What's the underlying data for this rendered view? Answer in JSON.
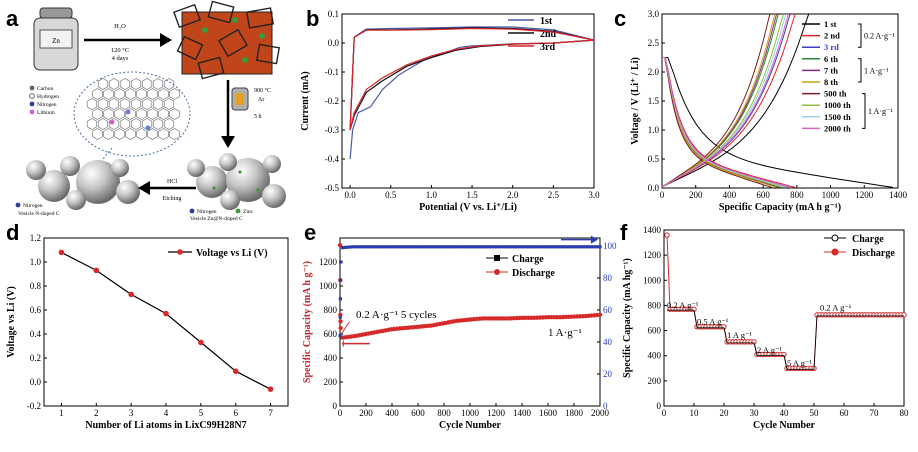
{
  "panels": {
    "a": {
      "label": "a",
      "step1": {
        "l1": "H₂O",
        "l2": "120 °C",
        "l3": "4 days"
      },
      "step2": {
        "l1": "900 °C",
        "l2": "Ar",
        "l3": "5 h"
      },
      "step3": {
        "l1": "HCl",
        "l2": "Etching"
      },
      "legend": [
        "Carbon",
        "Hydrogen",
        "Nitrogen",
        "Lithium"
      ],
      "left_caption": {
        "dot_label": "Nitrogen",
        "text": "Vesicle N-doped C"
      },
      "right_caption": {
        "dot1": "Nitrogen",
        "dot2": "Zinc",
        "text": "Vesicle Zn@N-doped C"
      }
    },
    "b": {
      "label": "b"
    },
    "c": {
      "label": "c"
    },
    "d": {
      "label": "d"
    },
    "e": {
      "label": "e"
    },
    "f": {
      "label": "f"
    }
  },
  "chart_data": [
    {
      "id": "b",
      "type": "line",
      "xlabel": "Potential (V vs. Li⁺/Li)",
      "ylabel": "Current (mA)",
      "xlim": [
        -0.1,
        3.0
      ],
      "ylim": [
        -0.5,
        0.1
      ],
      "xticks": [
        "0.0",
        "0.5",
        "1.0",
        "1.5",
        "2.0",
        "2.5",
        "3.0"
      ],
      "yticks": [
        "0.1",
        "0.0",
        "-0.1",
        "-0.2",
        "-0.3",
        "-0.4",
        "-0.5"
      ],
      "legend_position": "top-right",
      "series": [
        {
          "name": "1st",
          "color": "#4b5aa8",
          "points": [
            [
              0.0,
              -0.4
            ],
            [
              0.03,
              -0.3
            ],
            [
              0.1,
              -0.24
            ],
            [
              0.25,
              -0.22
            ],
            [
              0.4,
              -0.16
            ],
            [
              0.6,
              -0.11
            ],
            [
              0.9,
              -0.06
            ],
            [
              1.2,
              -0.03
            ],
            [
              1.35,
              -0.015
            ],
            [
              1.5,
              -0.01
            ],
            [
              2.0,
              -0.003
            ],
            [
              2.5,
              0.0
            ],
            [
              3.0,
              0.01
            ],
            [
              2.5,
              0.045
            ],
            [
              2.0,
              0.055
            ],
            [
              1.5,
              0.055
            ],
            [
              1.0,
              0.052
            ],
            [
              0.5,
              0.05
            ],
            [
              0.2,
              0.048
            ],
            [
              0.05,
              0.02
            ],
            [
              0.0,
              -0.3
            ]
          ]
        },
        {
          "name": "2nd",
          "color": "#111111",
          "points": [
            [
              0.0,
              -0.3
            ],
            [
              0.05,
              -0.25
            ],
            [
              0.2,
              -0.17
            ],
            [
              0.4,
              -0.13
            ],
            [
              0.7,
              -0.08
            ],
            [
              1.0,
              -0.05
            ],
            [
              1.3,
              -0.025
            ],
            [
              1.6,
              -0.012
            ],
            [
              2.0,
              -0.004
            ],
            [
              2.5,
              0.0
            ],
            [
              3.0,
              0.01
            ],
            [
              2.5,
              0.04
            ],
            [
              2.0,
              0.05
            ],
            [
              1.5,
              0.052
            ],
            [
              1.0,
              0.048
            ],
            [
              0.5,
              0.045
            ],
            [
              0.2,
              0.045
            ],
            [
              0.05,
              0.02
            ],
            [
              0.0,
              -0.3
            ]
          ]
        },
        {
          "name": "3rd",
          "color": "#d9262c",
          "points": [
            [
              0.0,
              -0.3
            ],
            [
              0.05,
              -0.24
            ],
            [
              0.2,
              -0.16
            ],
            [
              0.4,
              -0.12
            ],
            [
              0.7,
              -0.075
            ],
            [
              1.0,
              -0.045
            ],
            [
              1.3,
              -0.022
            ],
            [
              1.6,
              -0.01
            ],
            [
              2.0,
              -0.003
            ],
            [
              2.5,
              0.0
            ],
            [
              3.0,
              0.01
            ],
            [
              2.5,
              0.038
            ],
            [
              2.0,
              0.048
            ],
            [
              1.5,
              0.05
            ],
            [
              1.0,
              0.046
            ],
            [
              0.5,
              0.044
            ],
            [
              0.2,
              0.044
            ],
            [
              0.05,
              0.02
            ],
            [
              0.0,
              -0.3
            ]
          ]
        }
      ]
    },
    {
      "id": "c",
      "type": "line",
      "xlabel": "Specific Capacity (mA h g⁻¹)",
      "ylabel": "Voltage / V (Li⁺ / Li)",
      "xlim": [
        0,
        1400
      ],
      "ylim": [
        0.0,
        3.0
      ],
      "xticks": [
        "0",
        "200",
        "400",
        "600",
        "800",
        "1000",
        "1200",
        "1400"
      ],
      "yticks": [
        "3.0",
        "2.5",
        "2.0",
        "1.5",
        "1.0",
        "0.5",
        "0.0"
      ],
      "legend_position": "right",
      "legend_groups": [
        {
          "rate": "0.2 A·g⁻¹",
          "from": 1,
          "to": 3
        },
        {
          "rate": "1 A·g⁻¹",
          "from": 4,
          "to": 6
        },
        {
          "rate": "1 A·g⁻¹",
          "from": 7,
          "to": 10
        }
      ],
      "series": [
        {
          "name": "1 st",
          "color": "#000000",
          "discharge_end": 1370,
          "charge_end": 870
        },
        {
          "name": "2 nd",
          "color": "#e0202a",
          "discharge_end": 790,
          "charge_end": 790
        },
        {
          "name": "3 rd",
          "color": "#3a3ec2",
          "discharge_end": 760,
          "charge_end": 760
        },
        {
          "name": "6 th",
          "color": "#2a8a2a",
          "discharge_end": 700,
          "charge_end": 690
        },
        {
          "name": "7 th",
          "color": "#8a2a8a",
          "discharge_end": 690,
          "charge_end": 680
        },
        {
          "name": "8 th",
          "color": "#c8a010",
          "discharge_end": 680,
          "charge_end": 670
        },
        {
          "name": "500 th",
          "color": "#7a1f1f",
          "discharge_end": 650,
          "charge_end": 640
        },
        {
          "name": "1000 th",
          "color": "#8fbf3f",
          "discharge_end": 720,
          "charge_end": 720
        },
        {
          "name": "1500 th",
          "color": "#9ad0e8",
          "discharge_end": 740,
          "charge_end": 735
        },
        {
          "name": "2000 th",
          "color": "#e060c0",
          "discharge_end": 760,
          "charge_end": 750
        }
      ]
    },
    {
      "id": "d",
      "type": "line",
      "xlabel": "Number of Li atoms in LixC99H28N7",
      "ylabel": "Voltage vs Li (V)",
      "xlim": [
        0.5,
        7.5
      ],
      "ylim": [
        -0.2,
        1.2
      ],
      "xticks": [
        "1",
        "2",
        "3",
        "4",
        "5",
        "6",
        "7"
      ],
      "yticks": [
        "1.2",
        "1.0",
        "0.8",
        "0.6",
        "0.4",
        "0.2",
        "0.0",
        "-0.2"
      ],
      "legend_position": "top-right",
      "series": [
        {
          "name": "Voltage vs Li (V)",
          "color": "#000000",
          "marker": "#d62a2a",
          "x": [
            1,
            2,
            3,
            4,
            5,
            6,
            7
          ],
          "y": [
            1.08,
            0.93,
            0.73,
            0.57,
            0.33,
            0.09,
            -0.06
          ]
        }
      ]
    },
    {
      "id": "e",
      "type": "scatter",
      "xlabel": "Cycle Number",
      "ylabel": "Specific Capacity (mA h g⁻¹)",
      "y2label": "Coulombic Efficiency (%)",
      "xlim": [
        0,
        2000
      ],
      "ylim": [
        0,
        1400
      ],
      "y2lim": [
        0,
        105
      ],
      "xticks": [
        "0",
        "200",
        "400",
        "600",
        "800",
        "1000",
        "1200",
        "1400",
        "1600",
        "1800",
        "2000"
      ],
      "yticks": [
        "0",
        "200",
        "400",
        "600",
        "800",
        "1000",
        "1200"
      ],
      "y2ticks": [
        "0",
        "20",
        "40",
        "60",
        "80",
        "100"
      ],
      "legend_position": "center",
      "annotations": [
        "0.2 A·g⁻¹ 5 cycles",
        "1 A·g⁻¹"
      ],
      "series": [
        {
          "name": "Charge",
          "color": "#000000",
          "axis": "left",
          "x": [
            1,
            3,
            5,
            20,
            100,
            200,
            300,
            400,
            500,
            600,
            700,
            800,
            900,
            1000,
            1100,
            1200,
            1300,
            1400,
            1500,
            1600,
            1700,
            1800,
            1900,
            2000
          ],
          "y": [
            600,
            590,
            580,
            570,
            580,
            600,
            620,
            640,
            650,
            660,
            670,
            690,
            710,
            720,
            730,
            730,
            730,
            735,
            735,
            740,
            740,
            745,
            750,
            760
          ]
        },
        {
          "name": "Discharge",
          "color": "#d62a2a",
          "axis": "left",
          "x": [
            1,
            3,
            5,
            20,
            100,
            200,
            300,
            400,
            500,
            600,
            700,
            800,
            900,
            1000,
            1100,
            1200,
            1300,
            1400,
            1500,
            1600,
            1700,
            1800,
            1900,
            2000
          ],
          "y": [
            1340,
            760,
            650,
            570,
            580,
            600,
            620,
            640,
            650,
            660,
            670,
            690,
            710,
            720,
            730,
            730,
            730,
            735,
            735,
            740,
            740,
            745,
            750,
            760
          ]
        },
        {
          "name": "Coulombic Efficiency",
          "color": "#2a3cb0",
          "axis": "right",
          "x": [
            1,
            5,
            20,
            100,
            500,
            1000,
            1500,
            2000
          ],
          "y": [
            44,
            90,
            99,
            99.5,
            99.5,
            99.5,
            99.5,
            99.5
          ]
        }
      ]
    },
    {
      "id": "f",
      "type": "line",
      "xlabel": "Cycle Number",
      "ylabel": "Specific Capacity (mA hg⁻¹)",
      "xlim": [
        0,
        80
      ],
      "ylim": [
        0,
        1400
      ],
      "xticks": [
        "0",
        "10",
        "20",
        "30",
        "40",
        "50",
        "60",
        "70",
        "80"
      ],
      "yticks": [
        "0",
        "200",
        "400",
        "600",
        "800",
        "1000",
        "1200",
        "1400"
      ],
      "legend_position": "top-right",
      "rate_labels": [
        {
          "text": "0.2 A g⁻¹",
          "x": 1,
          "y": 780
        },
        {
          "text": "0.5 A g⁻¹",
          "x": 11,
          "y": 650
        },
        {
          "text": "1 A g⁻¹",
          "x": 21,
          "y": 540
        },
        {
          "text": "2 A g⁻¹",
          "x": 31,
          "y": 420
        },
        {
          "text": "5 A g⁻¹",
          "x": 41,
          "y": 320
        },
        {
          "text": "0.2 A g⁻¹",
          "x": 52,
          "y": 760
        }
      ],
      "steps": [
        {
          "from": 1,
          "to": 10,
          "value": 770
        },
        {
          "from": 11,
          "to": 20,
          "value": 630
        },
        {
          "from": 21,
          "to": 30,
          "value": 510
        },
        {
          "from": 31,
          "to": 40,
          "value": 410
        },
        {
          "from": 41,
          "to": 50,
          "value": 300
        },
        {
          "from": 51,
          "to": 80,
          "value": 725
        }
      ],
      "first_discharge": 1360,
      "series": [
        {
          "name": "Charge",
          "color": "#000000"
        },
        {
          "name": "Discharge",
          "color": "#d62a2a"
        }
      ]
    }
  ]
}
